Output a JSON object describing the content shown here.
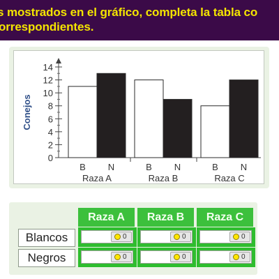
{
  "instruction": {
    "line1": "s mostrados en el gráfico, completa la tabla co",
    "line2": "orrespondientes."
  },
  "chart_data": {
    "type": "bar",
    "ylabel": "Conejos",
    "ylim": [
      0,
      14
    ],
    "yticks": [
      "0",
      "2",
      "4",
      "6",
      "8",
      "10",
      "12",
      "14"
    ],
    "groups": [
      {
        "name": "Raza A",
        "bars": [
          {
            "label": "B",
            "value": 11,
            "fill": "white"
          },
          {
            "label": "N",
            "value": 13,
            "fill": "black"
          }
        ]
      },
      {
        "name": "Raza B",
        "bars": [
          {
            "label": "B",
            "value": 12,
            "fill": "white"
          },
          {
            "label": "N",
            "value": 9,
            "fill": "black"
          }
        ]
      },
      {
        "name": "Raza C",
        "bars": [
          {
            "label": "B",
            "value": 8,
            "fill": "white"
          },
          {
            "label": "N",
            "value": 12,
            "fill": "black"
          }
        ]
      }
    ]
  },
  "table": {
    "headers": [
      "Raza A",
      "Raza B",
      "Raza C"
    ],
    "rows": [
      {
        "label": "Blancos",
        "cells": [
          {
            "value": "",
            "count": "0"
          },
          {
            "value": "",
            "count": "0"
          },
          {
            "value": "",
            "count": "0"
          }
        ]
      },
      {
        "label": "Negros",
        "cells": [
          {
            "value": "",
            "count": "0"
          },
          {
            "value": "",
            "count": "0"
          },
          {
            "value": "",
            "count": "0"
          }
        ]
      }
    ]
  },
  "colors": {
    "banner_bg": "#3b0a48",
    "banner_text": "#f3e400",
    "header_green": "#3cc03c",
    "cell_green": "#2ebd2e",
    "bar_white": "#ffffff",
    "bar_black": "#231f20"
  }
}
